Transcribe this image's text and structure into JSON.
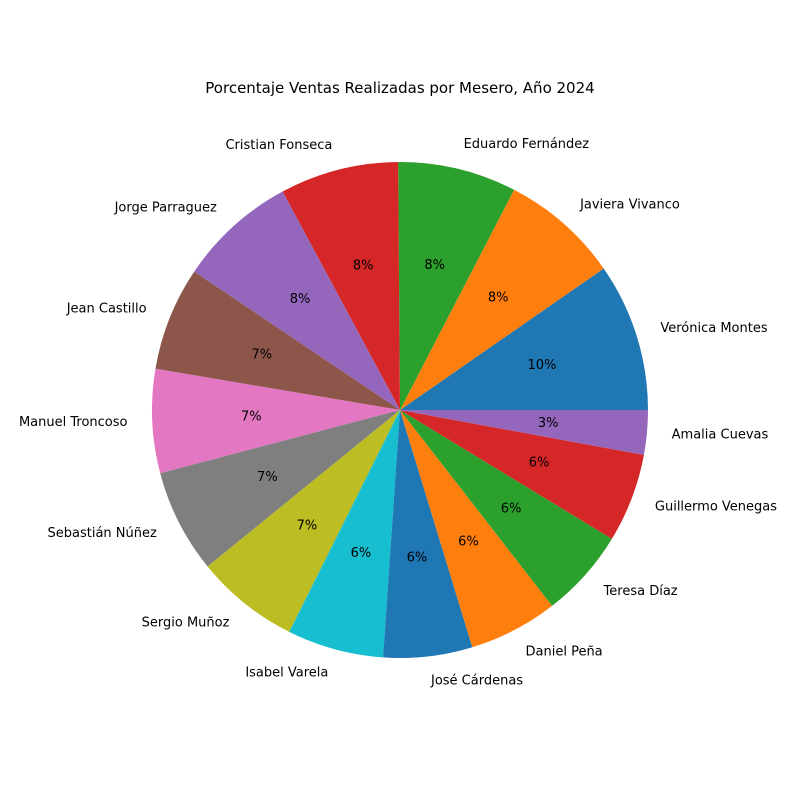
{
  "chart_data": {
    "type": "pie",
    "title": "Porcentaje Ventas Realizadas por Mesero, Año 2024",
    "start_angle_deg": 0,
    "direction": "counterclockwise",
    "slices": [
      {
        "label": "Verónica Montes",
        "value": 10,
        "pct_label": "10%",
        "color": "#1f77b4"
      },
      {
        "label": "Javiera Vivanco",
        "value": 8,
        "pct_label": "8%",
        "color": "#ff7f0e"
      },
      {
        "label": "Eduardo Fernández",
        "value": 8,
        "pct_label": "8%",
        "color": "#2ca02c"
      },
      {
        "label": "Cristian Fonseca",
        "value": 8,
        "pct_label": "8%",
        "color": "#d62728"
      },
      {
        "label": "Jorge Parraguez",
        "value": 8,
        "pct_label": "8%",
        "color": "#9467bd"
      },
      {
        "label": "Jean Castillo",
        "value": 7,
        "pct_label": "7%",
        "color": "#8c564b"
      },
      {
        "label": "Manuel Troncoso",
        "value": 7,
        "pct_label": "7%",
        "color": "#e377c2"
      },
      {
        "label": "Sebastián Núñez",
        "value": 7,
        "pct_label": "7%",
        "color": "#7f7f7f"
      },
      {
        "label": "Sergio Muñoz",
        "value": 7,
        "pct_label": "7%",
        "color": "#bcbd22"
      },
      {
        "label": "Isabel Varela",
        "value": 6.5,
        "pct_label": "6%",
        "color": "#17becf"
      },
      {
        "label": "José Cárdenas",
        "value": 6,
        "pct_label": "6%",
        "color": "#1f77b4"
      },
      {
        "label": "Daniel Peña",
        "value": 6,
        "pct_label": "6%",
        "color": "#ff7f0e"
      },
      {
        "label": "Teresa Díaz",
        "value": 6,
        "pct_label": "6%",
        "color": "#2ca02c"
      },
      {
        "label": "Guillermo Venegas",
        "value": 6,
        "pct_label": "6%",
        "color": "#d62728"
      },
      {
        "label": "Amalia Cuevas",
        "value": 3,
        "pct_label": "3%",
        "color": "#9467bd"
      }
    ]
  }
}
